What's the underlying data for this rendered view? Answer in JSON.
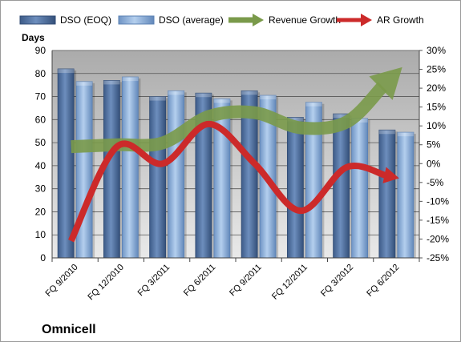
{
  "chart_data": {
    "type": "bar",
    "company": "Omnicell",
    "ylabel": "Days",
    "categories": [
      "FQ 9/2010",
      "FQ 12/2010",
      "FQ 3/2011",
      "FQ 6/2011",
      "FQ 9/2011",
      "FQ 12/2011",
      "FQ 3/2012",
      "FQ 6/2012"
    ],
    "ylim": [
      0,
      90
    ],
    "yticks": [
      "0",
      "10",
      "20",
      "30",
      "40",
      "50",
      "60",
      "70",
      "80",
      "90"
    ],
    "y2lim": [
      -25,
      30
    ],
    "y2ticks": [
      "-25%",
      "-20%",
      "-15%",
      "-10%",
      "-5%",
      "0%",
      "5%",
      "10%",
      "15%",
      "20%",
      "25%",
      "30%"
    ],
    "series": [
      {
        "name": "DSO (EOQ)",
        "type": "bar",
        "axis": "left",
        "color": "#4f6f9f",
        "values": [
          82,
          77,
          70,
          71.5,
          72.5,
          61,
          62.5,
          55.5
        ]
      },
      {
        "name": "DSO (average)",
        "type": "bar",
        "axis": "left",
        "color": "#8fb3df",
        "values": [
          76.5,
          78.5,
          72.5,
          69,
          70.5,
          67.5,
          60.5,
          54.5
        ]
      },
      {
        "name": "Revenue Growth",
        "type": "line",
        "axis": "right",
        "color": "#7a9a4a",
        "values": [
          4.5,
          5,
          5.5,
          12.5,
          13.5,
          9.5,
          11,
          23
        ]
      },
      {
        "name": "AR Growth",
        "type": "line",
        "axis": "right",
        "color": "#cc2a2a",
        "values": [
          -20.5,
          4.5,
          0,
          10.5,
          0,
          -12.5,
          -1,
          -3.5
        ]
      }
    ],
    "grid": true,
    "legend": "top"
  }
}
